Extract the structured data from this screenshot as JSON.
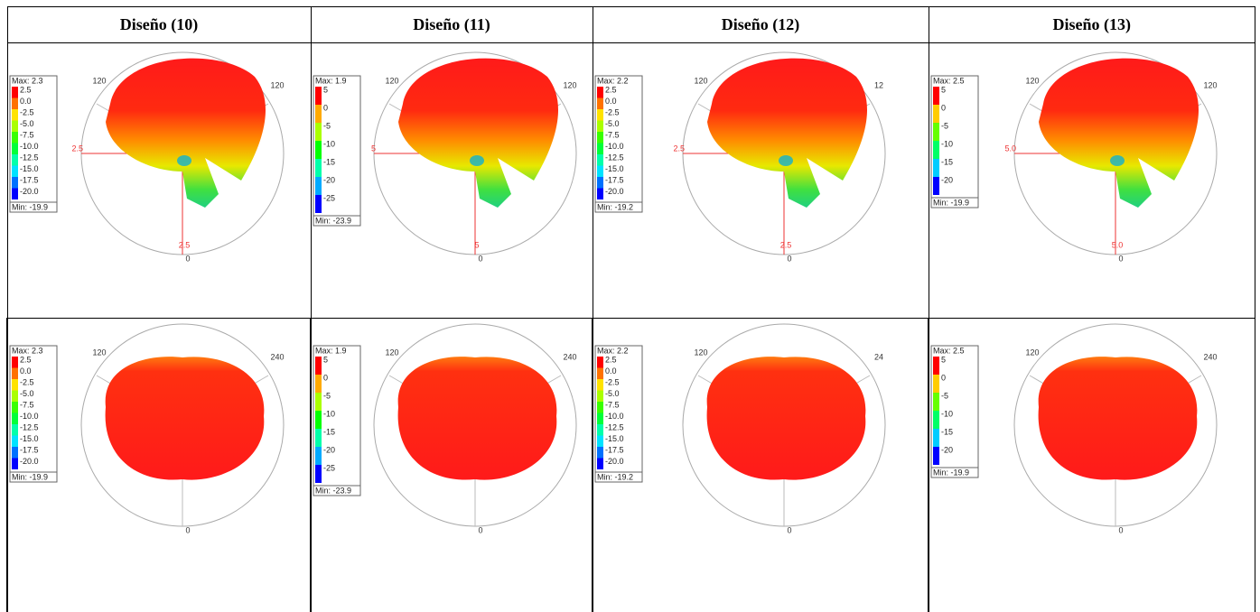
{
  "header": [
    "Diseño (10)",
    "Diseño (11)",
    "Diseño (12)",
    "Diseño (13)"
  ],
  "rows": [
    [
      {
        "legend": {
          "max": "Max: 2.3",
          "ticks": [
            "2.5",
            "0.0",
            "-2.5",
            "-5.0",
            "-7.5",
            "-10.0",
            "-12.5",
            "-15.0",
            "-17.5",
            "-20.0"
          ],
          "min": "Min: -19.9"
        },
        "angles": [
          "120",
          "120",
          "0"
        ],
        "scale": [
          "2.5",
          "2.5"
        ]
      },
      {
        "legend": {
          "max": "Max: 1.9",
          "ticks": [
            "5",
            "0",
            "-5",
            "-10",
            "-15",
            "-20",
            "-25"
          ],
          "min": "Min: -23.9"
        },
        "angles": [
          "120",
          "120",
          "0"
        ],
        "scale": [
          "5",
          "5"
        ]
      },
      {
        "legend": {
          "max": "Max: 2.2",
          "ticks": [
            "2.5",
            "0.0",
            "-2.5",
            "-5.0",
            "-7.5",
            "-10.0",
            "-12.5",
            "-15.0",
            "-17.5",
            "-20.0"
          ],
          "min": "Min: -19.2"
        },
        "angles": [
          "120",
          "12",
          "0"
        ],
        "scale": [
          "2.5",
          "2.5"
        ]
      },
      {
        "legend": {
          "max": "Max: 2.5",
          "ticks": [
            "5",
            "0",
            "-5",
            "-10",
            "-15",
            "-20"
          ],
          "min": "Min: -19.9"
        },
        "angles": [
          "120",
          "120",
          "0"
        ],
        "scale": [
          "5.0",
          "5.0"
        ]
      }
    ],
    [
      {
        "legend": {
          "max": "Max: 2.3",
          "ticks": [
            "2.5",
            "0.0",
            "-2.5",
            "-5.0",
            "-7.5",
            "-10.0",
            "-12.5",
            "-15.0",
            "-17.5",
            "-20.0"
          ],
          "min": "Min: -19.9"
        },
        "angles": [
          "120",
          "240",
          "0"
        ]
      },
      {
        "legend": {
          "max": "Max: 1.9",
          "ticks": [
            "5",
            "0",
            "-5",
            "-10",
            "-15",
            "-20",
            "-25"
          ],
          "min": "Min: -23.9"
        },
        "angles": [
          "120",
          "240",
          "0"
        ]
      },
      {
        "legend": {
          "max": "Max: 2.2",
          "ticks": [
            "2.5",
            "0.0",
            "-2.5",
            "-5.0",
            "-7.5",
            "-10.0",
            "-12.5",
            "-15.0",
            "-17.5",
            "-20.0"
          ],
          "min": "Min: -19.2"
        },
        "angles": [
          "120",
          "24",
          "0"
        ]
      },
      {
        "legend": {
          "max": "Max: 2.5",
          "ticks": [
            "5",
            "0",
            "-5",
            "-10",
            "-15",
            "-20"
          ],
          "min": "Min: -19.9"
        },
        "angles": [
          "120",
          "240",
          "0"
        ]
      }
    ]
  ]
}
